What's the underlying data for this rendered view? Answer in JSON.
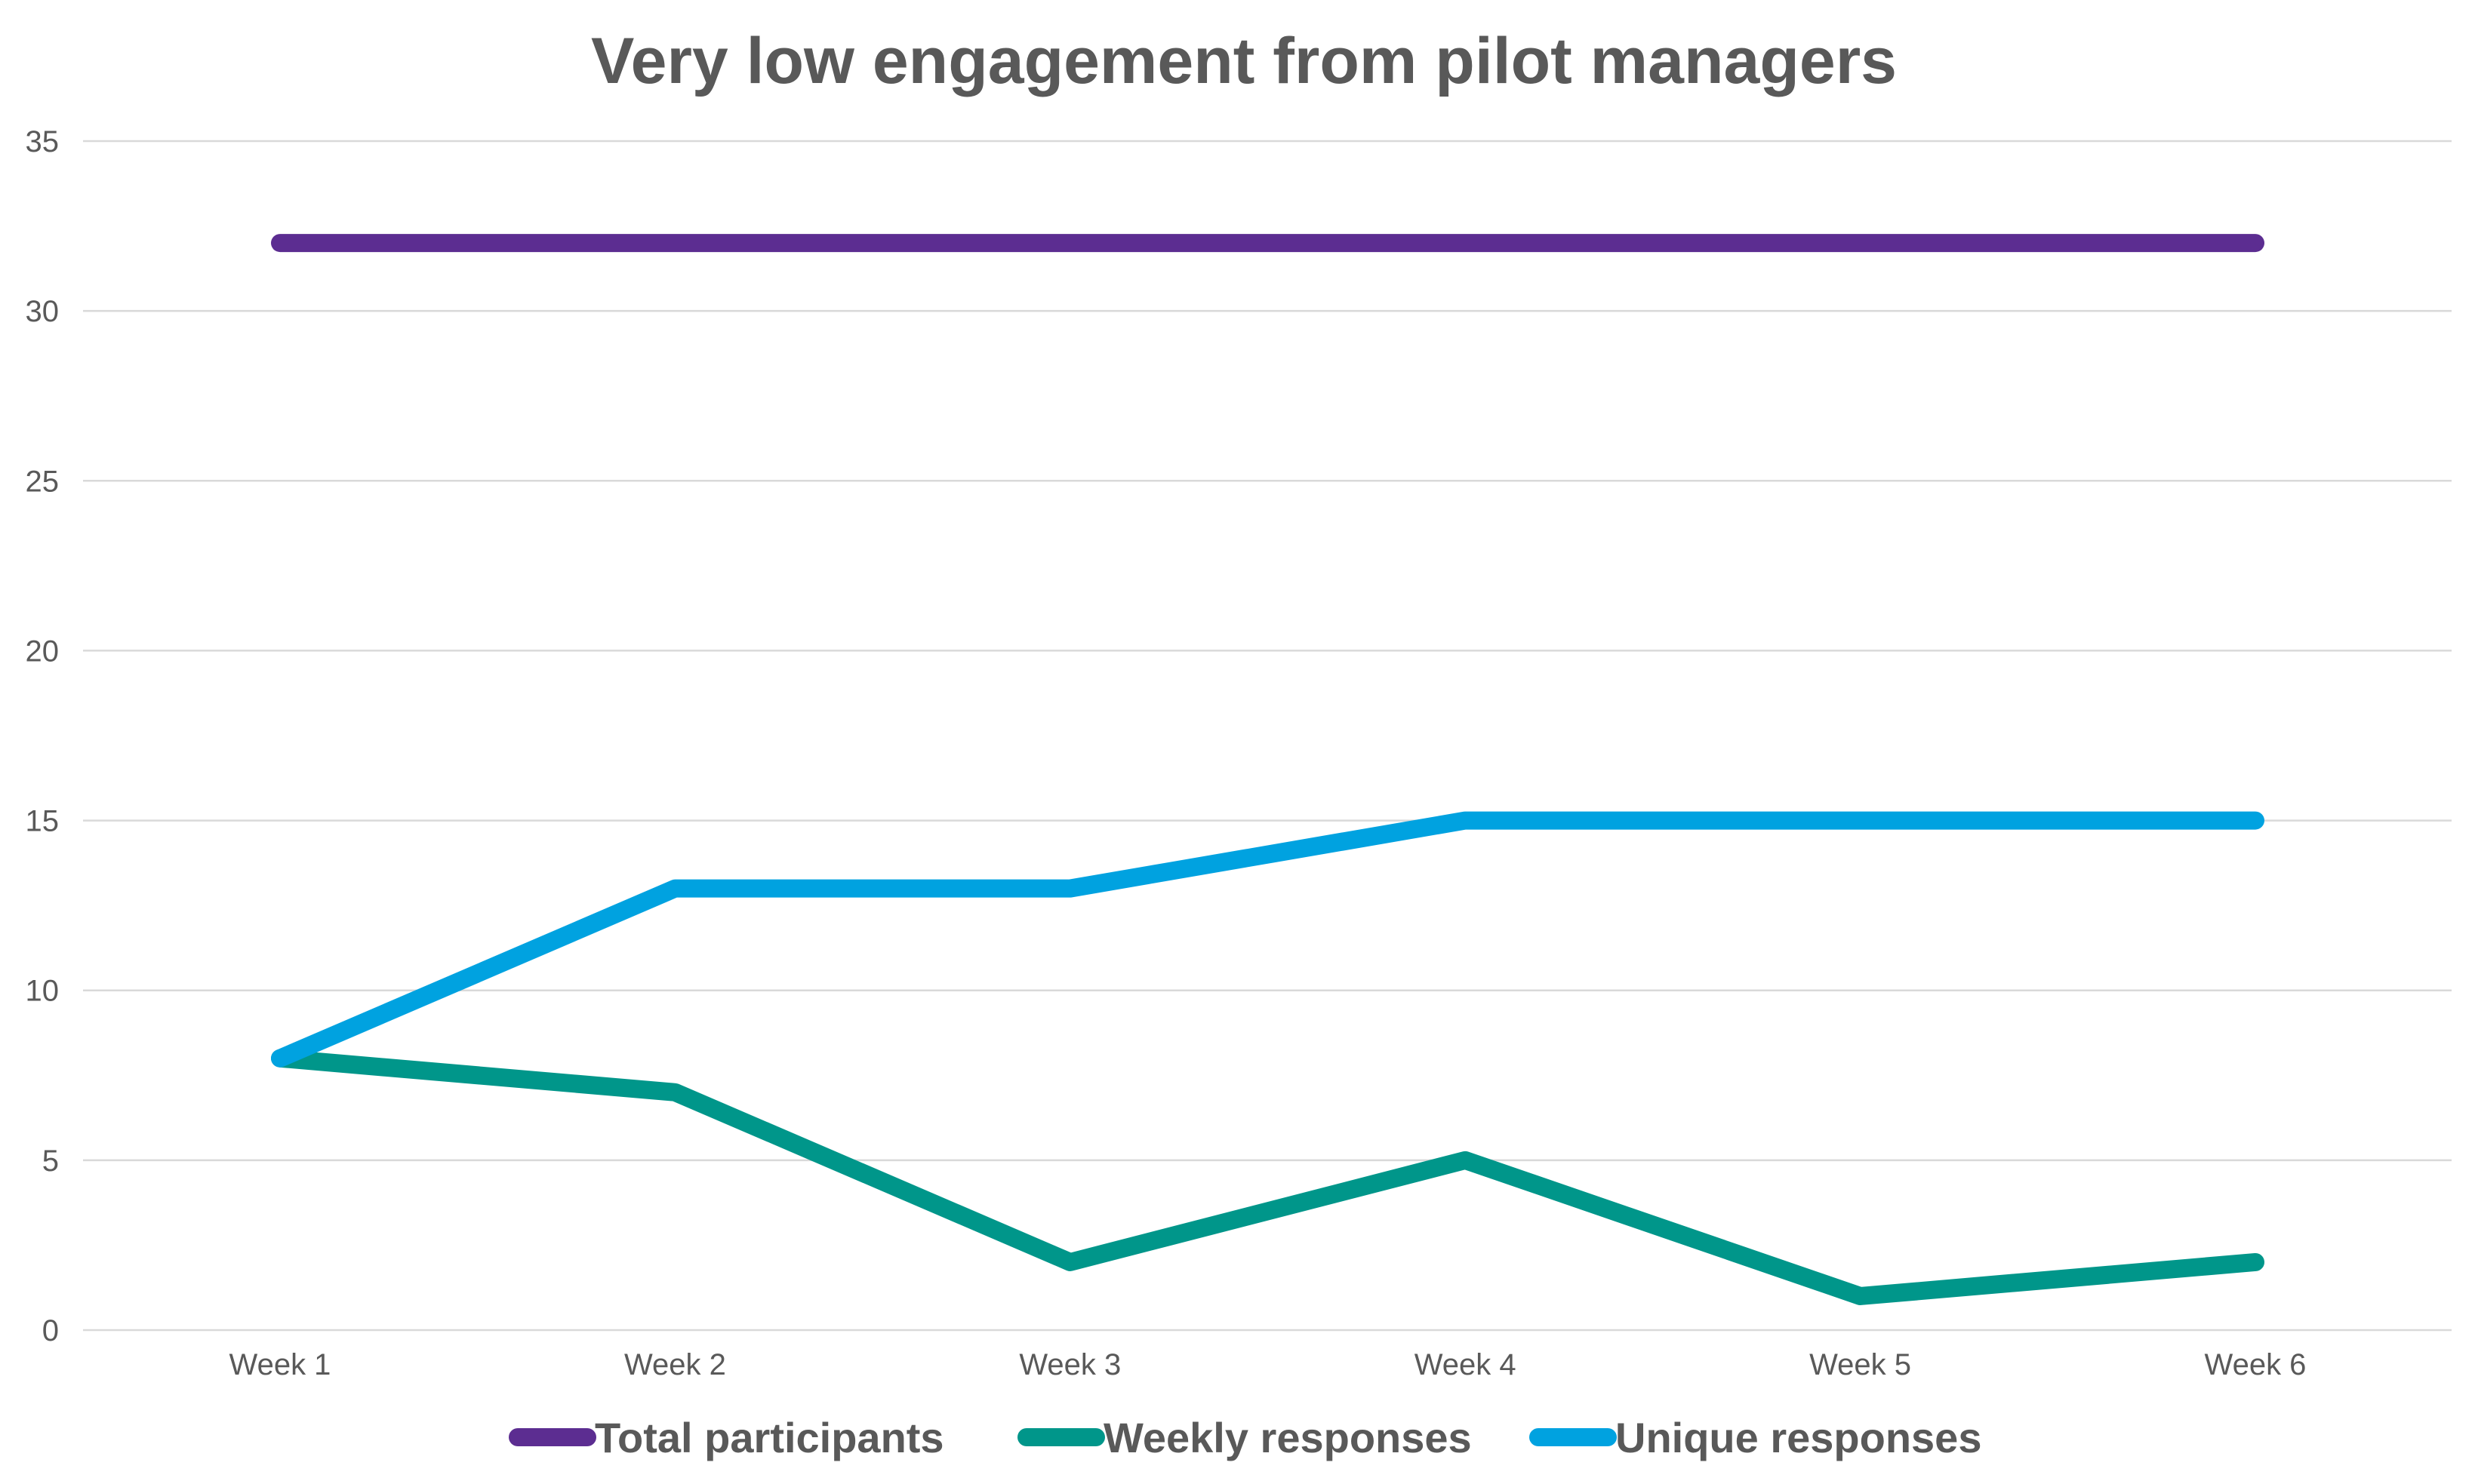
{
  "chart_data": {
    "type": "line",
    "title": "Very low engagement from pilot managers",
    "xlabel": "",
    "ylabel": "",
    "categories": [
      "Week 1",
      "Week 2",
      "Week 3",
      "Week 4",
      "Week 5",
      "Week 6"
    ],
    "ylim": [
      0,
      35
    ],
    "yticks": [
      0,
      5,
      10,
      15,
      20,
      25,
      30,
      35
    ],
    "grid": true,
    "legend_position": "bottom",
    "series": [
      {
        "name": "Total participants",
        "color": "#5c2d91",
        "values": [
          32,
          32,
          32,
          32,
          32,
          32
        ]
      },
      {
        "name": "Weekly responses",
        "color": "#00968a",
        "values": [
          8,
          7,
          2,
          5,
          1,
          2
        ]
      },
      {
        "name": "Unique responses",
        "color": "#00a2e0",
        "values": [
          8,
          13,
          13,
          15,
          15,
          15
        ]
      }
    ]
  }
}
